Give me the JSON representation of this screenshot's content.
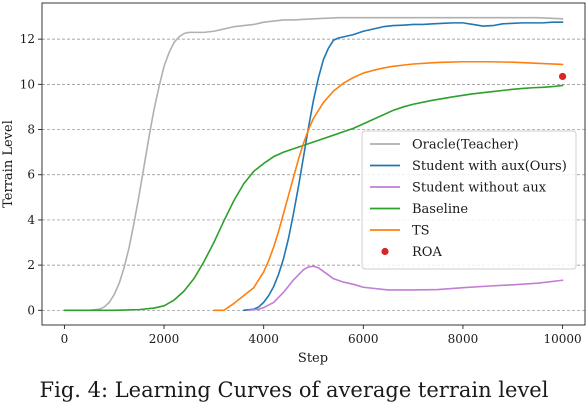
{
  "caption": "Fig. 4: Learning Curves of average terrain level",
  "chart_data": {
    "type": "line",
    "title": "",
    "xlabel": "Step",
    "ylabel": "Terrain Level",
    "xlim": [
      -450,
      10450
    ],
    "ylim": [
      -0.65,
      13.6
    ],
    "xticks": [
      0,
      2000,
      4000,
      6000,
      8000,
      10000
    ],
    "yticks": [
      0,
      2,
      4,
      6,
      8,
      10,
      12
    ],
    "grid": "horizontal dashed",
    "legend_position": "center-right",
    "series": [
      {
        "name": "Oracle(Teacher)",
        "color": "#b0b0b0",
        "x": [
          0,
          500,
          700,
          800,
          900,
          1000,
          1100,
          1200,
          1300,
          1400,
          1500,
          1600,
          1700,
          1800,
          1900,
          2000,
          2100,
          2200,
          2300,
          2400,
          2500,
          2600,
          2800,
          3000,
          3200,
          3400,
          3600,
          3800,
          4000,
          4200,
          4400,
          4600,
          5000,
          5500,
          6000,
          7000,
          8000,
          8500,
          9000,
          9500,
          10000
        ],
        "y": [
          0,
          0,
          0.05,
          0.15,
          0.35,
          0.7,
          1.2,
          1.9,
          2.8,
          3.9,
          5.1,
          6.4,
          7.7,
          8.9,
          9.9,
          10.8,
          11.4,
          11.85,
          12.1,
          12.25,
          12.3,
          12.3,
          12.3,
          12.35,
          12.45,
          12.55,
          12.6,
          12.65,
          12.75,
          12.8,
          12.85,
          12.85,
          12.9,
          12.95,
          12.95,
          12.95,
          12.95,
          12.95,
          12.95,
          12.95,
          12.9
        ]
      },
      {
        "name": "Student with aux(Ours)",
        "color": "#1f77b4",
        "x": [
          3600,
          3800,
          3900,
          4000,
          4100,
          4200,
          4300,
          4400,
          4500,
          4600,
          4700,
          4800,
          4900,
          5000,
          5100,
          5200,
          5300,
          5400,
          5500,
          5600,
          5800,
          6000,
          6200,
          6400,
          6600,
          6800,
          7000,
          7200,
          7400,
          7600,
          7800,
          8000,
          8200,
          8400,
          8600,
          8800,
          9000,
          9200,
          9400,
          9600,
          9800,
          10000
        ],
        "y": [
          0,
          0.05,
          0.15,
          0.35,
          0.65,
          1.05,
          1.6,
          2.3,
          3.2,
          4.3,
          5.5,
          6.8,
          8.1,
          9.3,
          10.3,
          11.1,
          11.6,
          11.95,
          12.05,
          12.1,
          12.2,
          12.35,
          12.45,
          12.55,
          12.6,
          12.62,
          12.65,
          12.65,
          12.68,
          12.7,
          12.72,
          12.72,
          12.65,
          12.58,
          12.6,
          12.68,
          12.7,
          12.72,
          12.72,
          12.72,
          12.75,
          12.75
        ]
      },
      {
        "name": "Student without aux",
        "color": "#c27dd6",
        "x": [
          3700,
          3900,
          4000,
          4200,
          4400,
          4600,
          4800,
          4900,
          5000,
          5100,
          5200,
          5400,
          5600,
          5800,
          6000,
          6500,
          7000,
          7500,
          8000,
          8500,
          9000,
          9500,
          10000
        ],
        "y": [
          0,
          0.05,
          0.12,
          0.35,
          0.8,
          1.35,
          1.8,
          1.92,
          1.95,
          1.88,
          1.72,
          1.4,
          1.25,
          1.15,
          1.02,
          0.9,
          0.9,
          0.92,
          1.0,
          1.07,
          1.13,
          1.2,
          1.33
        ]
      },
      {
        "name": "Baseline",
        "color": "#2ca02c",
        "x": [
          0,
          1000,
          1500,
          1800,
          2000,
          2200,
          2400,
          2600,
          2800,
          3000,
          3200,
          3400,
          3600,
          3800,
          4000,
          4200,
          4400,
          4600,
          4800,
          5000,
          5200,
          5400,
          5600,
          5800,
          6000,
          6200,
          6400,
          6600,
          6800,
          7000,
          7400,
          7800,
          8200,
          8600,
          9000,
          9200,
          9400,
          9600,
          9800,
          10000
        ],
        "y": [
          0,
          0,
          0.03,
          0.1,
          0.2,
          0.45,
          0.85,
          1.4,
          2.15,
          3.0,
          3.95,
          4.85,
          5.6,
          6.15,
          6.5,
          6.8,
          7.0,
          7.15,
          7.3,
          7.45,
          7.6,
          7.75,
          7.9,
          8.05,
          8.25,
          8.45,
          8.65,
          8.85,
          9.0,
          9.12,
          9.3,
          9.45,
          9.58,
          9.68,
          9.78,
          9.82,
          9.85,
          9.87,
          9.9,
          9.95
        ]
      },
      {
        "name": "TS",
        "color": "#ff7f0e",
        "x": [
          3000,
          3200,
          3400,
          3600,
          3800,
          4000,
          4100,
          4200,
          4300,
          4400,
          4500,
          4600,
          4700,
          4800,
          4900,
          5000,
          5200,
          5400,
          5600,
          5800,
          6000,
          6200,
          6400,
          6600,
          6800,
          7000,
          7500,
          8000,
          8500,
          9000,
          9500,
          10000
        ],
        "y": [
          0,
          0,
          0.3,
          0.65,
          1.0,
          1.7,
          2.2,
          2.8,
          3.5,
          4.3,
          5.1,
          5.9,
          6.7,
          7.4,
          8.0,
          8.5,
          9.2,
          9.7,
          10.05,
          10.3,
          10.5,
          10.62,
          10.72,
          10.8,
          10.85,
          10.9,
          10.97,
          11.0,
          11.0,
          10.98,
          10.93,
          10.88
        ]
      }
    ],
    "points": [
      {
        "name": "ROA",
        "color": "#d62728",
        "x": 10000,
        "y": 10.35
      }
    ]
  }
}
